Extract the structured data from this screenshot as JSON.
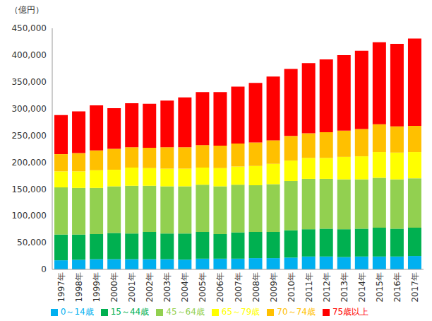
{
  "chart_data": {
    "type": "bar",
    "stacked": true,
    "y_label": "（億円）",
    "categories": [
      "1997年",
      "1998年",
      "1999年",
      "2000年",
      "2001年",
      "2002年",
      "2003年",
      "2004年",
      "2005年",
      "2006年",
      "2007年",
      "2008年",
      "2009年",
      "2010年",
      "2011年",
      "2012年",
      "2013年",
      "2014年",
      "2015年",
      "2016年",
      "2017年"
    ],
    "series": [
      {
        "name": "0～14歳",
        "color": "#00b0f0",
        "values": [
          17000,
          18000,
          19000,
          19000,
          19000,
          19000,
          19000,
          18000,
          20000,
          20000,
          20000,
          21000,
          21000,
          22000,
          24000,
          24000,
          23000,
          24000,
          24000,
          24000,
          25000
        ]
      },
      {
        "name": "15～44歳",
        "color": "#00b050",
        "values": [
          48000,
          47000,
          47000,
          49000,
          48000,
          51000,
          48000,
          49000,
          50000,
          46000,
          49000,
          49000,
          49000,
          51000,
          51000,
          52000,
          52000,
          52000,
          54000,
          52000,
          53000
        ]
      },
      {
        "name": "45～64歳",
        "color": "#92d050",
        "values": [
          88000,
          87000,
          86000,
          87000,
          89000,
          86000,
          88000,
          88000,
          88000,
          89000,
          89000,
          87000,
          89000,
          92000,
          94000,
          93000,
          93000,
          92000,
          93000,
          92000,
          92000
        ]
      },
      {
        "name": "65～79歳",
        "color": "#ffff00",
        "values": [
          30000,
          31000,
          33000,
          31000,
          34000,
          33000,
          33000,
          33000,
          32000,
          34000,
          34000,
          36000,
          38000,
          38000,
          39000,
          39000,
          42000,
          43000,
          48000,
          50000,
          49000
        ]
      },
      {
        "name": "70～74歳",
        "color": "#ffc000",
        "values": [
          32000,
          34000,
          37000,
          39000,
          38000,
          38000,
          40000,
          40000,
          42000,
          42000,
          43000,
          44000,
          44000,
          46000,
          46000,
          48000,
          49000,
          51000,
          52000,
          49000,
          49000
        ]
      },
      {
        "name": "75歳以上",
        "color": "#ff0000",
        "values": [
          73000,
          78000,
          84000,
          76000,
          82000,
          82000,
          87000,
          93000,
          99000,
          100000,
          106000,
          111000,
          119000,
          125000,
          131000,
          136000,
          141000,
          146000,
          153000,
          154000,
          163000
        ]
      }
    ],
    "ylim": [
      0,
      450000
    ],
    "yticks": [
      0,
      {
        "value": 50000,
        "label": "50,000"
      },
      {
        "value": 100000,
        "label": "100,000"
      },
      {
        "value": 150000,
        "label": "150,000"
      },
      {
        "value": 200000,
        "label": "200,000"
      },
      {
        "value": 250000,
        "label": "250,000"
      },
      {
        "value": 300000,
        "label": "300,000"
      },
      {
        "value": 350000,
        "label": "350,000"
      },
      {
        "value": 400000,
        "label": "400,000"
      },
      {
        "value": 450000,
        "label": "450,000"
      }
    ],
    "grid": false,
    "legend": "bottom"
  }
}
